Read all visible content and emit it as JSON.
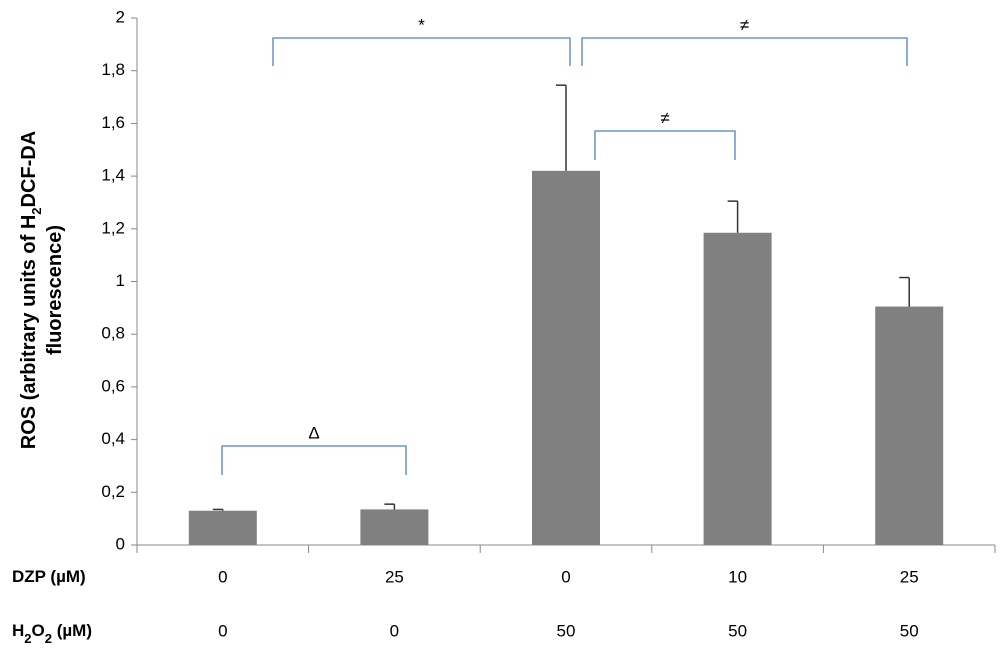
{
  "chart_data": {
    "type": "bar",
    "ylabel": {
      "line1": [
        "ROS (arbitrary units of H",
        "2",
        "DCF-DA"
      ],
      "line2": [
        "fluorescence)"
      ]
    },
    "rows": [
      {
        "label": [
          "DZP (µM)"
        ],
        "categories": [
          "0",
          "25",
          "0",
          "10",
          "25"
        ]
      },
      {
        "label": [
          "H",
          "2",
          "O",
          "2",
          " (µM)"
        ],
        "categories": [
          "0",
          "0",
          "50",
          "50",
          "50"
        ]
      }
    ],
    "values": [
      0.13,
      0.135,
      1.42,
      1.185,
      0.905
    ],
    "errors": [
      0.005,
      0.02,
      0.325,
      0.12,
      0.11
    ],
    "color": "#808080",
    "ylim": [
      0,
      2
    ],
    "yticks": [
      0,
      {
        "value": 0.2,
        "label": "0,2"
      },
      {
        "value": 0.4,
        "label": "0,4"
      },
      {
        "value": 0.6,
        "label": "0,6"
      },
      {
        "value": 0.8,
        "label": "0,8"
      },
      1,
      {
        "value": 1.2,
        "label": "1,2"
      },
      {
        "value": 1.4,
        "label": "1,4"
      },
      {
        "value": 1.6,
        "label": "1,6"
      },
      {
        "value": 1.8,
        "label": "1,8"
      },
      2
    ],
    "annotations": [
      "*",
      "≠",
      "≠",
      "Δ"
    ]
  }
}
